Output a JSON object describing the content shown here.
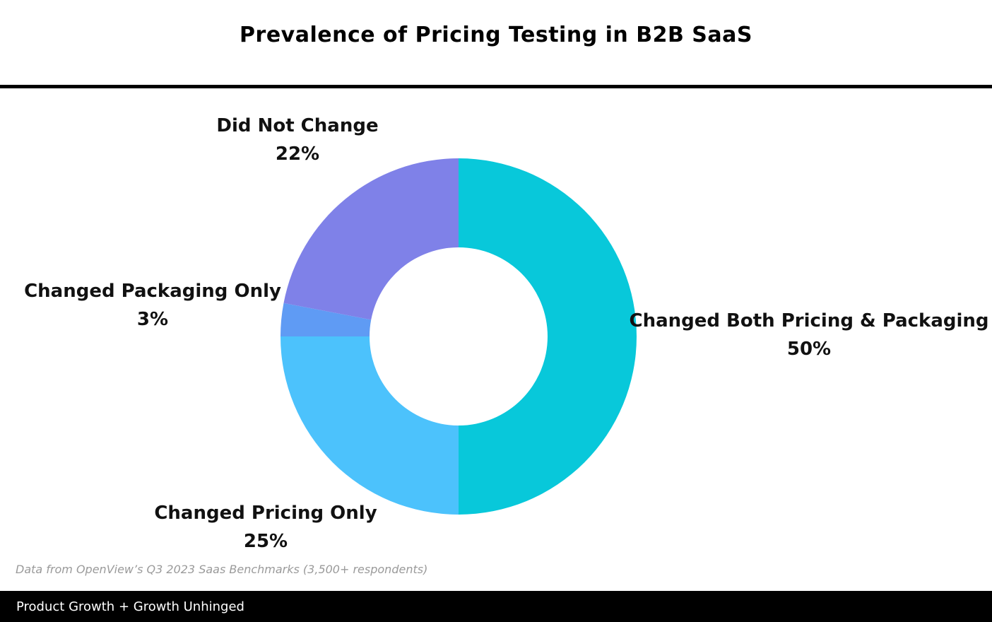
{
  "title": "Prevalence of Pricing Testing in B2B SaaS",
  "source_note": "Data from OpenView’s Q3 2023 Saas Benchmarks (3,500+ respondents)",
  "footer": {
    "text": "Product Growth + Growth Unhinged"
  },
  "chart_data": {
    "type": "pie",
    "donut": true,
    "title": "Prevalence of Pricing Testing in B2B SaaS",
    "legend": "none",
    "slices": [
      {
        "label": "Changed Both Pricing & Packaging",
        "value": 50,
        "value_label": "50%",
        "color": "#08c8da"
      },
      {
        "label": "Changed Pricing Only",
        "value": 25,
        "value_label": "25%",
        "color": "#4cc2fc"
      },
      {
        "label": "Changed Packaging Only",
        "value": 3,
        "value_label": "3%",
        "color": "#5f9bf4"
      },
      {
        "label": "Did Not Change",
        "value": 22,
        "value_label": "22%",
        "color": "#7f81e8"
      }
    ]
  }
}
